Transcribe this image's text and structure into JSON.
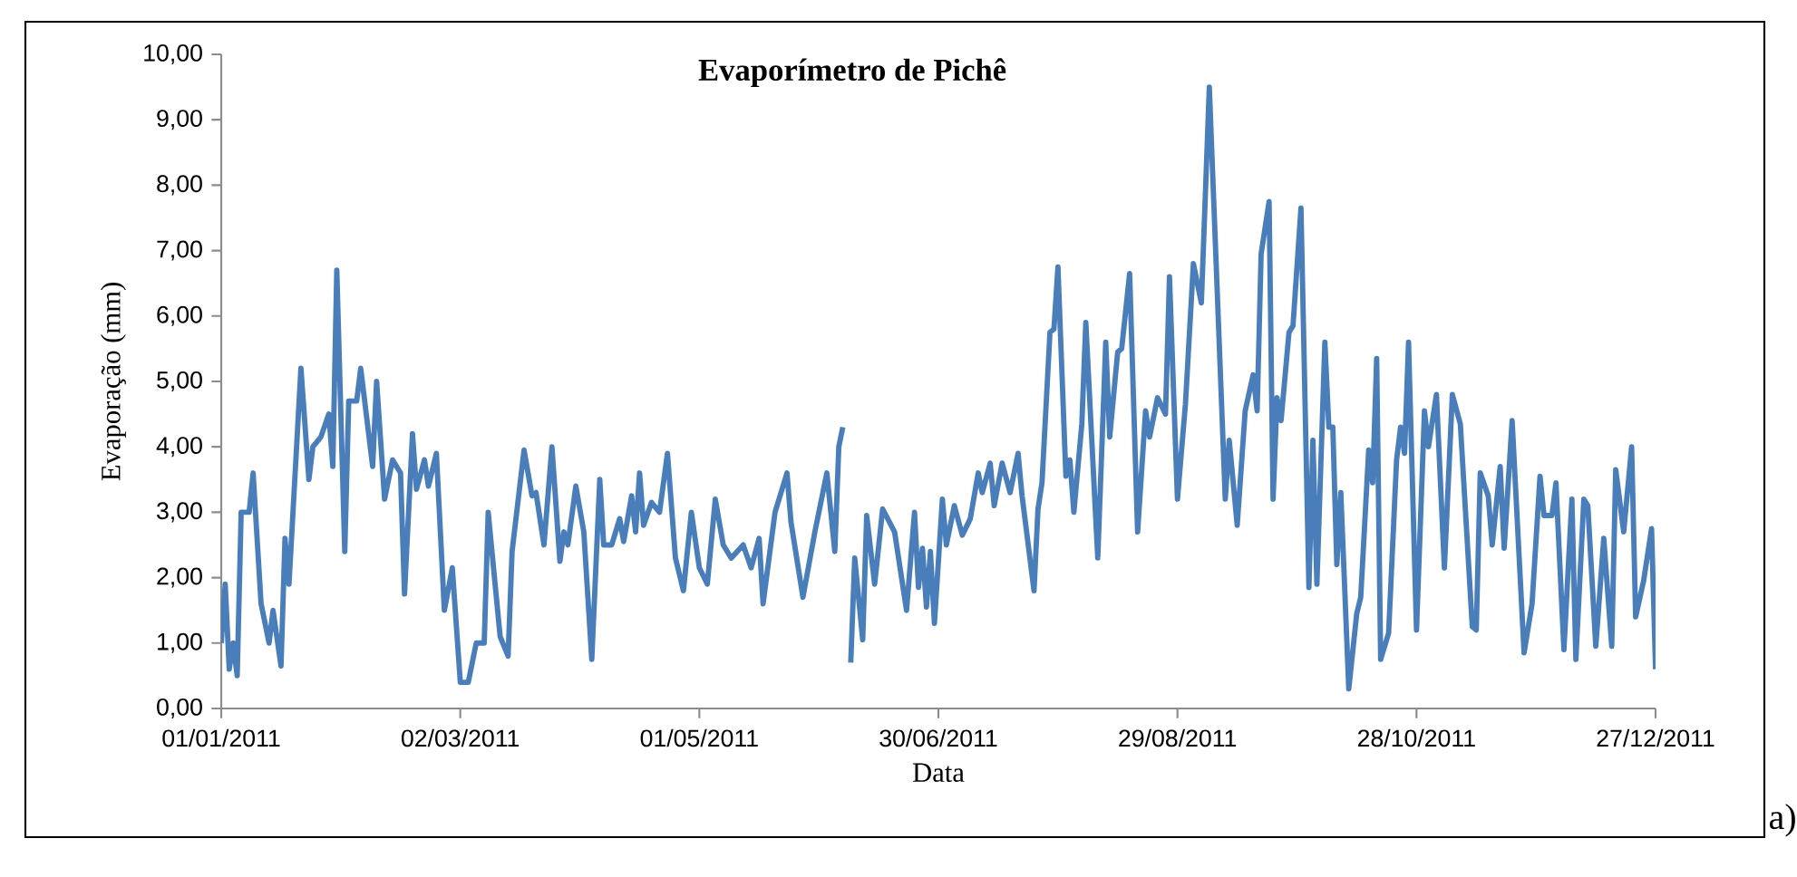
{
  "chart_data": {
    "type": "line",
    "title": "Evaporímetro de Pichê",
    "xlabel": "Data",
    "ylabel": "Evaporação (mm)",
    "x": [
      "2011-01-01",
      "2011-01-02",
      "2011-01-03",
      "2011-01-04",
      "2011-01-05",
      "2011-01-06",
      "2011-01-08",
      "2011-01-09",
      "2011-01-11",
      "2011-01-13",
      "2011-01-14",
      "2011-01-16",
      "2011-01-17",
      "2011-01-18",
      "2011-01-21",
      "2011-01-23",
      "2011-01-24",
      "2011-01-26",
      "2011-01-28",
      "2011-01-29",
      "2011-01-30",
      "2011-02-01",
      "2011-02-02",
      "2011-02-04",
      "2011-02-05",
      "2011-02-08",
      "2011-02-09",
      "2011-02-11",
      "2011-02-13",
      "2011-02-15",
      "2011-02-16",
      "2011-02-18",
      "2011-02-19",
      "2011-02-21",
      "2011-02-22",
      "2011-02-24",
      "2011-02-26",
      "2011-02-28",
      "2011-03-02",
      "2011-03-04",
      "2011-03-06",
      "2011-03-08",
      "2011-03-09",
      "2011-03-12",
      "2011-03-14",
      "2011-03-15",
      "2011-03-18",
      "2011-03-20",
      "2011-03-21",
      "2011-03-23",
      "2011-03-25",
      "2011-03-27",
      "2011-03-28",
      "2011-03-29",
      "2011-03-31",
      "2011-04-02",
      "2011-04-04",
      "2011-04-06",
      "2011-04-07",
      "2011-04-09",
      "2011-04-11",
      "2011-04-12",
      "2011-04-14",
      "2011-04-15",
      "2011-04-16",
      "2011-04-17",
      "2011-04-19",
      "2011-04-21",
      "2011-04-23",
      "2011-04-25",
      "2011-04-27",
      "2011-04-29",
      "2011-05-01",
      "2011-05-03",
      "2011-05-05",
      "2011-05-07",
      "2011-05-09",
      "2011-05-12",
      "2011-05-14",
      "2011-05-16",
      "2011-05-17",
      "2011-05-20",
      "2011-05-23",
      "2011-05-24",
      "2011-05-27",
      "2011-05-30",
      "2011-06-02",
      "2011-06-04",
      "2011-06-05",
      "2011-06-06",
      "2011-06-07",
      "2011-06-08",
      "2011-06-09",
      "2011-06-11",
      "2011-06-12",
      "2011-06-14",
      "2011-06-16",
      "2011-06-19",
      "2011-06-22",
      "2011-06-24",
      "2011-06-25",
      "2011-06-26",
      "2011-06-27",
      "2011-06-28",
      "2011-06-29",
      "2011-07-01",
      "2011-07-02",
      "2011-07-04",
      "2011-07-06",
      "2011-07-08",
      "2011-07-10",
      "2011-07-11",
      "2011-07-13",
      "2011-07-14",
      "2011-07-16",
      "2011-07-18",
      "2011-07-20",
      "2011-07-21",
      "2011-07-24",
      "2011-07-25",
      "2011-07-26",
      "2011-07-28",
      "2011-07-29",
      "2011-07-30",
      "2011-08-01",
      "2011-08-02",
      "2011-08-03",
      "2011-08-05",
      "2011-08-06",
      "2011-08-09",
      "2011-08-11",
      "2011-08-12",
      "2011-08-14",
      "2011-08-15",
      "2011-08-17",
      "2011-08-19",
      "2011-08-21",
      "2011-08-22",
      "2011-08-24",
      "2011-08-26",
      "2011-08-27",
      "2011-08-29",
      "2011-08-31",
      "2011-09-02",
      "2011-09-04",
      "2011-09-06",
      "2011-09-10",
      "2011-09-11",
      "2011-09-13",
      "2011-09-15",
      "2011-09-17",
      "2011-09-18",
      "2011-09-19",
      "2011-09-21",
      "2011-09-22",
      "2011-09-23",
      "2011-09-24",
      "2011-09-26",
      "2011-09-27",
      "2011-09-29",
      "2011-10-01",
      "2011-10-02",
      "2011-10-03",
      "2011-10-05",
      "2011-10-06",
      "2011-10-07",
      "2011-10-08",
      "2011-10-09",
      "2011-10-11",
      "2011-10-13",
      "2011-10-14",
      "2011-10-16",
      "2011-10-17",
      "2011-10-18",
      "2011-10-19",
      "2011-10-21",
      "2011-10-23",
      "2011-10-24",
      "2011-10-25",
      "2011-10-26",
      "2011-10-28",
      "2011-10-30",
      "2011-10-31",
      "2011-11-02",
      "2011-11-04",
      "2011-11-06",
      "2011-11-08",
      "2011-11-11",
      "2011-11-12",
      "2011-11-13",
      "2011-11-15",
      "2011-11-16",
      "2011-11-18",
      "2011-11-19",
      "2011-11-21",
      "2011-11-24",
      "2011-11-26",
      "2011-11-28",
      "2011-11-29",
      "2011-12-01",
      "2011-12-02",
      "2011-12-04",
      "2011-12-06",
      "2011-12-07",
      "2011-12-09",
      "2011-12-10",
      "2011-12-12",
      "2011-12-14",
      "2011-12-16",
      "2011-12-17",
      "2011-12-19",
      "2011-12-21",
      "2011-12-22",
      "2011-12-24",
      "2011-12-26",
      "2011-12-27"
    ],
    "series": [
      {
        "color": "#4a7ebb",
        "values": [
          1.0,
          1.9,
          0.6,
          1.0,
          0.5,
          3.0,
          3.0,
          3.6,
          1.6,
          1.0,
          1.5,
          0.65,
          2.6,
          1.9,
          5.2,
          3.5,
          4.0,
          4.15,
          4.5,
          3.7,
          6.7,
          2.4,
          4.7,
          4.7,
          5.2,
          3.7,
          5.0,
          3.2,
          3.8,
          3.6,
          1.75,
          4.2,
          3.35,
          3.8,
          3.4,
          3.9,
          1.5,
          2.15,
          0.4,
          0.4,
          1.0,
          1.0,
          3.0,
          1.1,
          0.8,
          2.4,
          3.95,
          3.25,
          3.3,
          2.5,
          4.0,
          2.25,
          2.7,
          2.5,
          3.4,
          2.7,
          0.75,
          3.5,
          2.5,
          2.5,
          2.9,
          2.55,
          3.25,
          2.7,
          3.6,
          2.8,
          3.15,
          3.0,
          3.9,
          2.3,
          1.8,
          3.0,
          2.15,
          1.9,
          3.2,
          2.5,
          2.3,
          2.5,
          2.15,
          2.6,
          1.6,
          3.0,
          3.6,
          2.85,
          1.7,
          2.7,
          3.6,
          2.4,
          4.0,
          4.3,
          null,
          0.7,
          2.3,
          1.05,
          2.95,
          1.9,
          3.05,
          2.7,
          1.5,
          3.0,
          1.85,
          2.45,
          1.55,
          2.4,
          1.3,
          3.2,
          2.5,
          3.1,
          2.65,
          2.9,
          3.6,
          3.3,
          3.75,
          3.1,
          3.75,
          3.3,
          3.9,
          3.25,
          1.8,
          3.05,
          3.45,
          5.75,
          5.8,
          6.75,
          3.55,
          3.8,
          3.0,
          4.35,
          5.9,
          2.3,
          5.6,
          4.15,
          5.45,
          5.5,
          6.65,
          2.7,
          4.55,
          4.15,
          4.75,
          4.5,
          6.6,
          3.2,
          4.65,
          6.8,
          6.2,
          9.5,
          3.2,
          4.1,
          2.8,
          4.55,
          5.1,
          4.55,
          6.95,
          7.75,
          3.2,
          4.75,
          4.4,
          5.75,
          5.85,
          7.65,
          1.85,
          4.1,
          1.9,
          5.6,
          4.3,
          4.3,
          2.2,
          3.3,
          0.3,
          1.45,
          1.7,
          3.95,
          3.45,
          5.35,
          0.75,
          1.15,
          3.8,
          4.3,
          3.9,
          5.6,
          1.2,
          4.55,
          4.0,
          4.8,
          2.15,
          4.8,
          4.35,
          1.25,
          1.2,
          3.6,
          3.25,
          2.5,
          3.7,
          2.45,
          4.4,
          0.85,
          1.6,
          3.55,
          2.95,
          2.95,
          3.45,
          0.9,
          3.2,
          0.75,
          3.2,
          3.1,
          0.95,
          2.6,
          0.95,
          3.65,
          2.7,
          4.0,
          1.4,
          1.95,
          2.75,
          0.6
        ]
      }
    ],
    "xlim": [
      "2011-01-01",
      "2011-12-27"
    ],
    "xticks": [
      {
        "value": "2011-01-01",
        "label": "01/01/2011"
      },
      {
        "value": "2011-03-02",
        "label": "02/03/2011"
      },
      {
        "value": "2011-05-01",
        "label": "01/05/2011"
      },
      {
        "value": "2011-06-30",
        "label": "30/06/2011"
      },
      {
        "value": "2011-08-29",
        "label": "29/08/2011"
      },
      {
        "value": "2011-10-28",
        "label": "28/10/2011"
      },
      {
        "value": "2011-12-27",
        "label": "27/12/2011"
      }
    ],
    "ylim": [
      0,
      10
    ],
    "yticks": [
      {
        "value": 0,
        "label": "0,00"
      },
      {
        "value": 1,
        "label": "1,00"
      },
      {
        "value": 2,
        "label": "2,00"
      },
      {
        "value": 3,
        "label": "3,00"
      },
      {
        "value": 4,
        "label": "4,00"
      },
      {
        "value": 5,
        "label": "5,00"
      },
      {
        "value": 6,
        "label": "6,00"
      },
      {
        "value": 7,
        "label": "7,00"
      },
      {
        "value": 8,
        "label": "8,00"
      },
      {
        "value": 9,
        "label": "9,00"
      },
      {
        "value": 10,
        "label": "10,00"
      }
    ],
    "grid": false,
    "legend": false,
    "marker": "none",
    "line_style": "solid",
    "annotations": [
      "a)"
    ]
  }
}
